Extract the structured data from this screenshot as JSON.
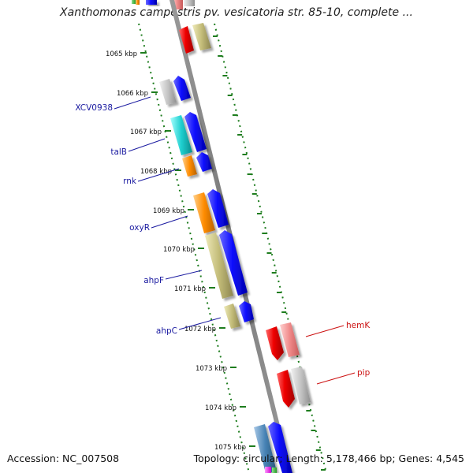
{
  "title": "Xanthomonas campestris pv. vesicatoria str. 85-10, complete ...",
  "footer": {
    "accession": "Accession: NC_007508",
    "topology": "Topology: circular; Length: 5,178,466 bp; Genes: 4,545"
  },
  "ticks": [
    "1065 kbp",
    "1066 kbp",
    "1067 kbp",
    "1068 kbp",
    "1069 kbp",
    "1070 kbp",
    "1071 kbp",
    "1072 kbp",
    "1073 kbp",
    "1074 kbp",
    "1075 kbp"
  ],
  "gene_labels": {
    "left": [
      "XCV0938",
      "talB",
      "rnk",
      "oxyR",
      "ahpF",
      "ahpC"
    ],
    "right": [
      "hemK",
      "pip"
    ]
  },
  "colors": {
    "backbone": "#888888",
    "ticks": "#1e7d1e",
    "left_label": "#1a1aa0",
    "right_label": "#cc1111",
    "cds": "#0000ff"
  }
}
